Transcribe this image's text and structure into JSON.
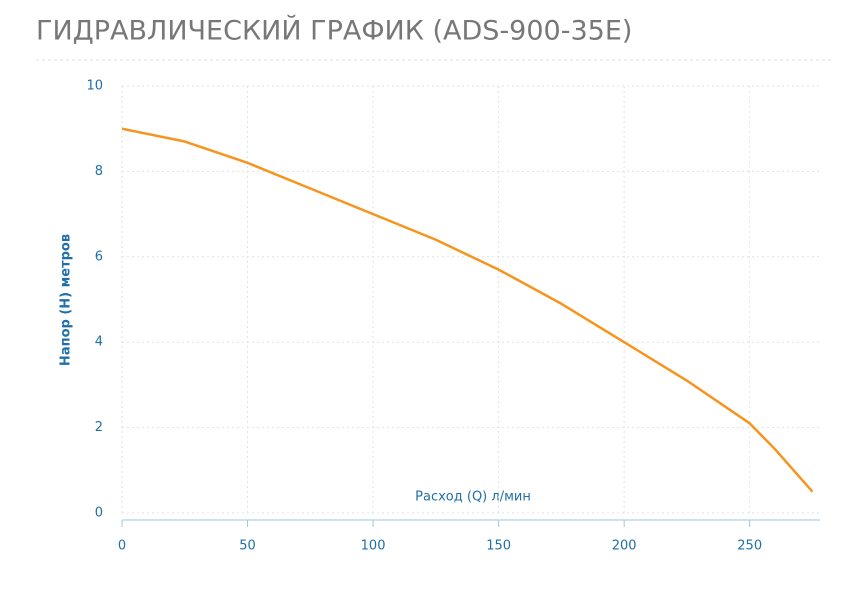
{
  "chart_data": {
    "type": "line",
    "title": "ГИДРАВЛИЧЕСКИЙ ГРАФИК (ADS-900-35E)",
    "x_label": "Расход (Q) л/мин",
    "y_label": "Напор (H) метров",
    "x": [
      0,
      25,
      50,
      75,
      100,
      125,
      150,
      175,
      200,
      225,
      250,
      260,
      275
    ],
    "series": [
      {
        "color": "#f7941d",
        "values": [
          9,
          8.7,
          8.2,
          7.6,
          7.0,
          6.4,
          5.7,
          4.9,
          4.0,
          3.1,
          2.1,
          1.5,
          0.5
        ]
      }
    ],
    "xlim": [
      0,
      278
    ],
    "ylim": [
      0,
      10
    ],
    "xticks": [
      0,
      50,
      100,
      150,
      200,
      250
    ],
    "yticks": [
      0,
      2,
      4,
      6,
      8,
      10
    ],
    "grid": true
  }
}
